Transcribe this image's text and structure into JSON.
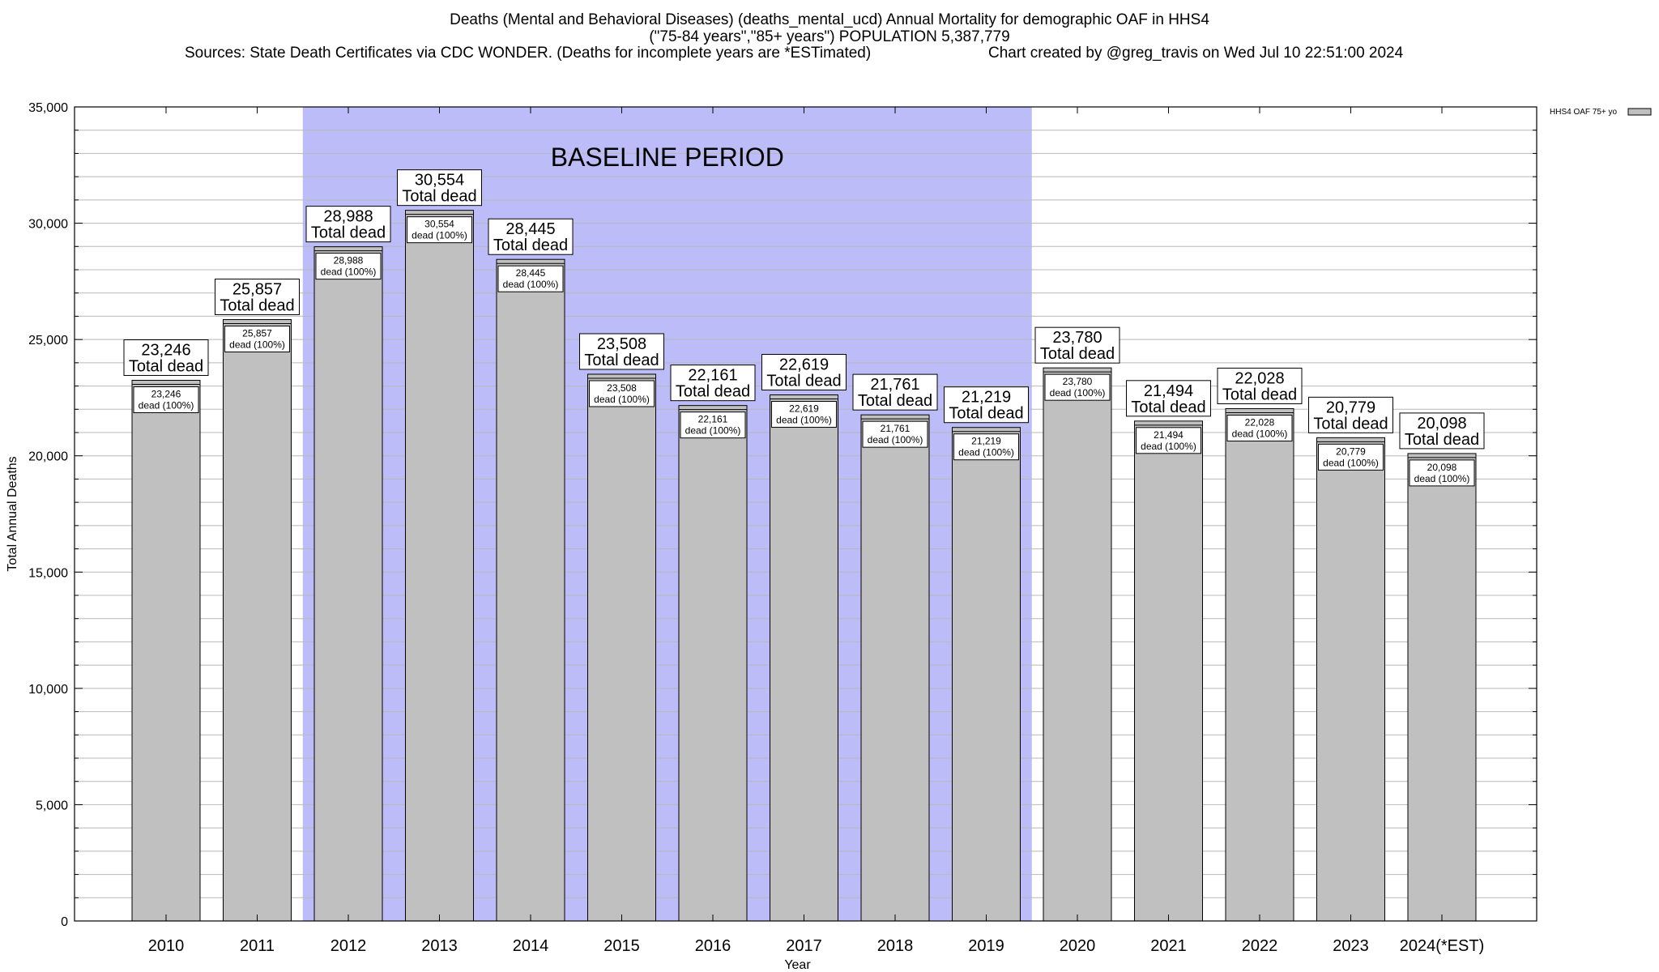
{
  "header": {
    "title_line1": "Deaths (Mental and Behavioral Diseases) (deaths_mental_ucd) Annual Mortality for demographic OAF in HHS4",
    "title_line2": "(\"75-84 years\",\"85+ years\") POPULATION 5,387,779",
    "sources": "Sources: State Death Certificates via CDC WONDER. (Deaths for incomplete years are *ESTimated)",
    "credit": "Chart created by @greg_travis on Wed Jul 10 22:51:00 2024"
  },
  "chart_data": {
    "type": "bar",
    "xlabel": "Year",
    "ylabel": "Total Annual Deaths",
    "ylim": [
      0,
      35000
    ],
    "yticks": [
      0,
      5000,
      10000,
      15000,
      20000,
      25000,
      30000,
      35000
    ],
    "ytick_labels": [
      "0",
      "5,000",
      "10,000",
      "15,000",
      "20,000",
      "25,000",
      "30,000",
      "35,000"
    ],
    "grid": true,
    "legend": {
      "placement": "top-right",
      "label": "HHS4 OAF 75+ yo"
    },
    "baseline_period": {
      "label": "BASELINE PERIOD",
      "from": "2012",
      "to": "2019",
      "color": "#bcbcf8"
    },
    "bar_color": "#c0c0c0",
    "categories": [
      "2010",
      "2011",
      "2012",
      "2013",
      "2014",
      "2015",
      "2016",
      "2017",
      "2018",
      "2019",
      "2020",
      "2021",
      "2022",
      "2023",
      "2024(*EST)"
    ],
    "values": [
      23246,
      25857,
      28988,
      30554,
      28445,
      23508,
      22161,
      22619,
      21761,
      21219,
      23780,
      21494,
      22028,
      20779,
      20098
    ],
    "value_labels": [
      "23,246",
      "25,857",
      "28,988",
      "30,554",
      "28,445",
      "23,508",
      "22,161",
      "22,619",
      "21,761",
      "21,219",
      "23,780",
      "21,494",
      "22,028",
      "20,779",
      "20,098"
    ],
    "total_label": "Total dead",
    "inner_label": "dead (100%)"
  }
}
